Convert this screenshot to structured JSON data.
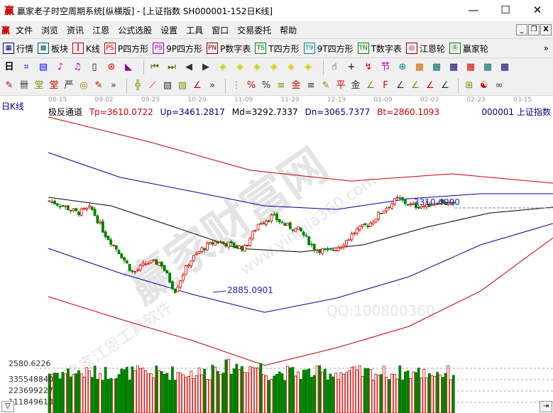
{
  "window": {
    "logo": "赢",
    "title": "赢家老子时空周期系统[纵横版] - [上证指数  SH000001-152日K线]",
    "minimize": "—",
    "maximize": "☐",
    "close": "✕"
  },
  "menu": {
    "logo": "赢",
    "items": [
      "文件",
      "浏览",
      "资讯",
      "江恩",
      "公式选股",
      "设置",
      "工具",
      "窗口",
      "交易委托",
      "帮助"
    ],
    "mdi": [
      "_",
      "❐",
      "X"
    ]
  },
  "toolbar1": {
    "items": [
      {
        "icon": "grid-icon",
        "glyph": "▦",
        "label": "行情"
      },
      {
        "icon": "blocks-icon",
        "glyph": "▩",
        "label": "板块"
      },
      {
        "icon": "kline-icon",
        "glyph": "┃",
        "label": "K线"
      },
      {
        "icon": "ps-icon",
        "glyph": "PS",
        "label": "P四方形"
      },
      {
        "icon": "p9-icon",
        "glyph": "P9",
        "label": "9P四方形"
      },
      {
        "icon": "pn-icon",
        "glyph": "PN",
        "label": "P数字表"
      },
      {
        "icon": "ts-icon",
        "glyph": "TS",
        "label": "T四方形"
      },
      {
        "icon": "t9-icon",
        "glyph": "T9",
        "label": "9T四方形"
      },
      {
        "icon": "tn-icon",
        "glyph": "TN",
        "label": "T数字表"
      },
      {
        "icon": "gann-wheel-icon",
        "glyph": "◎",
        "label": "江恩轮"
      },
      {
        "icon": "big-wheel-icon",
        "glyph": "Ⓑ",
        "label": "赢家轮"
      }
    ],
    "more": "»"
  },
  "toolbar2": {
    "period": "日",
    "glyphs": [
      "⌗",
      "▤",
      "♪",
      "♫",
      "▯",
      "⊛",
      "◣",
      "⏮",
      "⏭",
      "◀",
      "▶",
      "◈",
      "◈",
      "◈",
      "◈",
      "◈",
      "◈",
      "☝",
      "+",
      "↯",
      "节",
      "⊕",
      "▦",
      "▦",
      "▦",
      "▦",
      "▦",
      "▦"
    ]
  },
  "toolbar3": {
    "glyphs": [
      "✎",
      "卌",
      "堂",
      "堂",
      "严",
      "◎",
      "✎",
      "»",
      "╬",
      "⟋",
      "▨",
      "▧",
      "∠",
      "»",
      "⋮",
      "%",
      "%",
      "≡",
      "金",
      "≡",
      "✎",
      "平",
      "金",
      "∠",
      "F",
      "∠",
      "∠",
      "∠",
      "∠",
      "⊞",
      "☯",
      "∞"
    ]
  },
  "chart": {
    "period_label": "日K线",
    "indicator": "极反通道",
    "tp": "Tp=3610.0722",
    "up": "Up=3461.2817",
    "md": "Md=3292.7337",
    "dn": "Dn=3065.7377",
    "bt": "Bt=2860.1093",
    "code": "000001  上证指数",
    "dates": [
      "08-15",
      "09-02",
      "09-23",
      "10-20",
      "11-09",
      "11-29",
      "12-19",
      "01-09",
      "02-03",
      "02-23",
      "03-15"
    ],
    "high_label": "3310.4900",
    "low_label": "2885.0901",
    "vol_top_label": "2580.6226",
    "vol_ticks": [
      "335548840",
      "223699227",
      "111849613"
    ],
    "corner_left": "▽",
    "corner_right": "⇥",
    "colors": {
      "up": "#e00000",
      "down": "#008000",
      "band_outer": "#c00000",
      "band_inner": "#0000a0",
      "mid": "#000000"
    },
    "watermark": [
      "赢家财富网",
      "www.yingjia360.com",
      "赢家江恩工具软件",
      "QQ:100800360"
    ]
  },
  "chart_data": {
    "type": "candlestick",
    "bars": 152,
    "close_keypoints": [
      3346,
      3321,
      3285,
      3310,
      3178,
      3089,
      2982,
      3035,
      3035,
      2893,
      3035,
      3107,
      3143,
      3125,
      3107,
      3232,
      3268,
      3221,
      3196,
      3107,
      3089,
      3125,
      3196,
      3232,
      3303,
      3357,
      3321,
      3321,
      3346,
      3321
    ],
    "bands": {
      "outer_upper": [
        3768,
        3643,
        3500,
        3446,
        3482,
        3435
      ],
      "inner_upper": [
        3589,
        3464,
        3393,
        3321,
        3303,
        3357,
        3382,
        3382
      ],
      "middle": [
        3364,
        3321,
        3214,
        3107,
        3089,
        3125,
        3214,
        3285,
        3314
      ],
      "inner_lower": [
        3107,
        2982,
        2875,
        2785,
        2857,
        2964,
        3125,
        3232
      ],
      "outer_lower": [
        2864,
        2750,
        2643,
        2518,
        2607,
        2714,
        2893,
        3160
      ]
    },
    "marked_high": 3310.49,
    "marked_low": 2885.0901
  }
}
